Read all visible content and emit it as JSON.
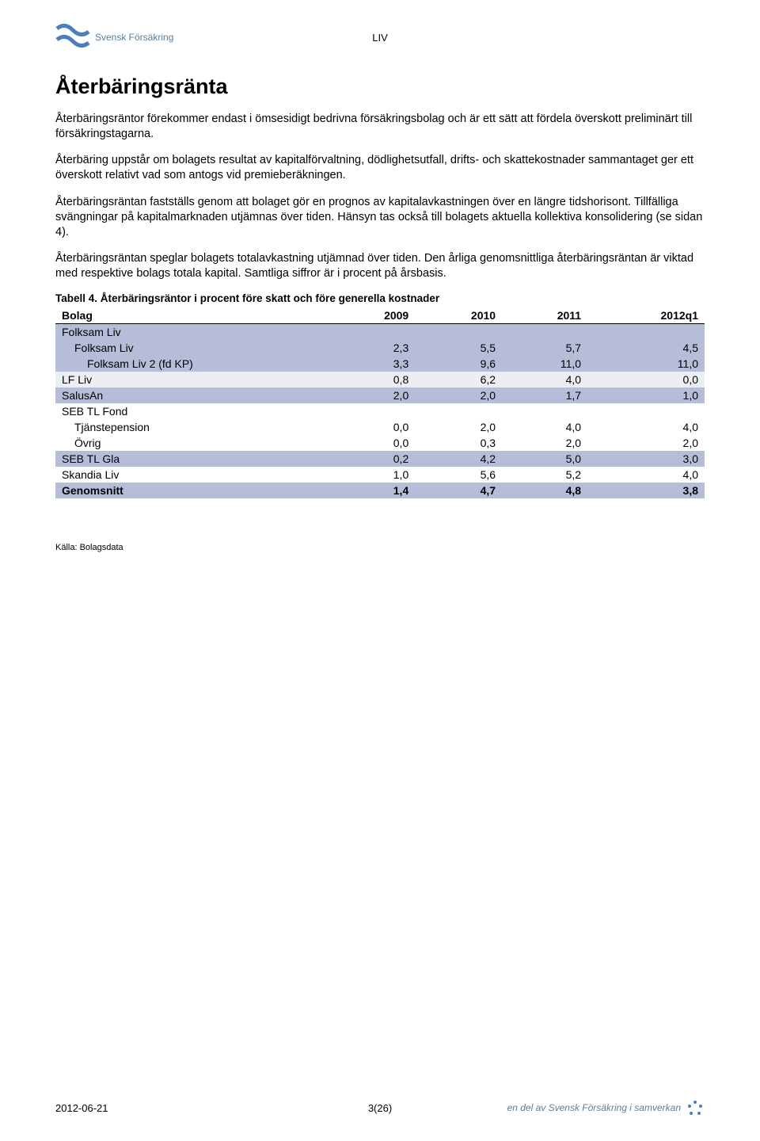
{
  "header": {
    "logo_text": "Svensk Försäkring",
    "center": "LIV"
  },
  "title": "Återbäringsränta",
  "paragraphs": [
    "Återbäringsräntor förekommer endast i ömsesidigt bedrivna försäkringsbolag och är ett sätt att fördela överskott preliminärt till försäkringstagarna.",
    "Återbäring uppstår om bolagets resultat av kapitalförvaltning, dödlighetsutfall, drifts- och skattekostnader sammantaget ger ett överskott relativt vad som antogs vid premieberäkningen.",
    "Återbäringsräntan fastställs genom att bolaget gör en prognos av kapitalavkastningen över en längre tidshorisont. Tillfälliga svängningar på kapitalmarknaden utjämnas över tiden. Hänsyn tas också till bolagets aktuella kollektiva konsolidering (se sidan 4).",
    "Återbäringsräntan speglar bolagets totalavkastning utjämnad över tiden. Den årliga genomsnittliga återbäringsräntan är viktad med respektive bolags totala kapital. Samtliga siffror är i procent på årsbasis."
  ],
  "table": {
    "caption": "Tabell 4. Återbäringsräntor i procent före skatt och före generella kostnader",
    "columns": [
      "Bolag",
      "2009",
      "2010",
      "2011",
      "2012q1"
    ],
    "rows": [
      {
        "label": "Folksam Liv",
        "values": [
          "",
          "",
          "",
          ""
        ],
        "bg": "bg-blue",
        "indent": 0
      },
      {
        "label": "Folksam Liv",
        "values": [
          "2,3",
          "5,5",
          "5,7",
          "4,5"
        ],
        "bg": "bg-blue",
        "indent": 1
      },
      {
        "label": "Folksam Liv 2 (fd KP)",
        "values": [
          "3,3",
          "9,6",
          "11,0",
          "11,0"
        ],
        "bg": "bg-blue",
        "indent": 2
      },
      {
        "label": "LF  Liv",
        "values": [
          "0,8",
          "6,2",
          "4,0",
          "0,0"
        ],
        "bg": "bg-light",
        "indent": 0
      },
      {
        "label": "SalusAn",
        "values": [
          "2,0",
          "2,0",
          "1,7",
          "1,0"
        ],
        "bg": "bg-blue",
        "indent": 0
      },
      {
        "label": "SEB TL Fond",
        "values": [
          "",
          "",
          "",
          ""
        ],
        "bg": "",
        "indent": 0
      },
      {
        "label": "Tjänstepension",
        "values": [
          "0,0",
          "2,0",
          "4,0",
          "4,0"
        ],
        "bg": "",
        "indent": 1
      },
      {
        "label": "Övrig",
        "values": [
          "0,0",
          "0,3",
          "2,0",
          "2,0"
        ],
        "bg": "",
        "indent": 1
      },
      {
        "label": "SEB TL Gla",
        "values": [
          "0,2",
          "4,2",
          "5,0",
          "3,0"
        ],
        "bg": "bg-blue",
        "indent": 0
      },
      {
        "label": "Skandia Liv",
        "values": [
          "1,0",
          "5,6",
          "5,2",
          "4,0"
        ],
        "bg": "",
        "indent": 0
      },
      {
        "label": "Genomsnitt",
        "values": [
          "1,4",
          "4,7",
          "4,8",
          "3,8"
        ],
        "bg": "bg-blue",
        "indent": 0,
        "bold": true
      }
    ]
  },
  "source": "Källa: Bolagsdata",
  "footer": {
    "left": "2012-06-21",
    "center": "3(26)",
    "right": "en del av Svensk Försäkring i samverkan"
  },
  "colors": {
    "row_blue": "#b5bdd8",
    "row_light": "#eceef5",
    "logo_blue": "#4a7fbb",
    "text_gray": "#5b7d95"
  }
}
